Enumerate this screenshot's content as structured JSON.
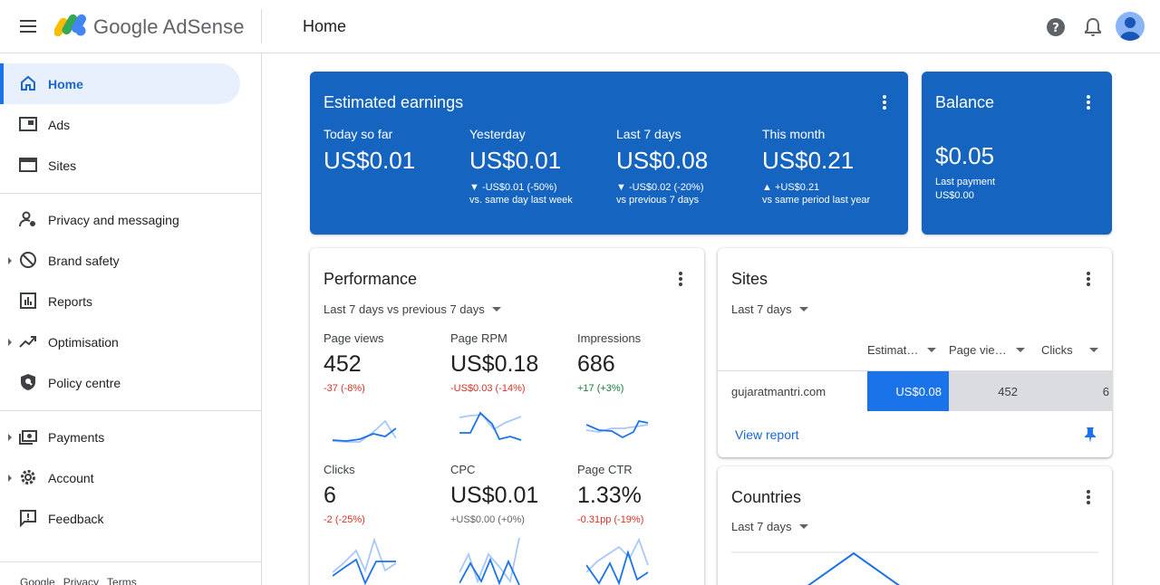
{
  "header": {
    "brand_google": "Google",
    "brand_product": "AdSense",
    "page_title": "Home"
  },
  "sidebar": {
    "items": [
      {
        "label": "Home",
        "icon": "home-icon"
      },
      {
        "label": "Ads",
        "icon": "ads-icon"
      },
      {
        "label": "Sites",
        "icon": "sites-icon"
      },
      {
        "label": "Privacy and messaging",
        "icon": "privacy-icon"
      },
      {
        "label": "Brand safety",
        "icon": "block-icon"
      },
      {
        "label": "Reports",
        "icon": "reports-icon"
      },
      {
        "label": "Optimisation",
        "icon": "trending-up-icon"
      },
      {
        "label": "Policy centre",
        "icon": "shield-icon"
      },
      {
        "label": "Payments",
        "icon": "payments-icon"
      },
      {
        "label": "Account",
        "icon": "gear-icon"
      },
      {
        "label": "Feedback",
        "icon": "feedback-icon"
      }
    ],
    "footer": [
      "Google",
      "Privacy",
      "Terms"
    ]
  },
  "earnings": {
    "title": "Estimated earnings",
    "cols": [
      {
        "label": "Today so far",
        "value": "US$0.01",
        "change": "",
        "compare": ""
      },
      {
        "label": "Yesterday",
        "value": "US$0.01",
        "change": "▼ -US$0.01 (-50%)",
        "compare": "vs. same day last week"
      },
      {
        "label": "Last 7 days",
        "value": "US$0.08",
        "change": "▼ -US$0.02 (-20%)",
        "compare": "vs previous 7 days"
      },
      {
        "label": "This month",
        "value": "US$0.21",
        "change": "▲ +US$0.21",
        "compare": "vs same period last year"
      }
    ]
  },
  "balance": {
    "title": "Balance",
    "value": "$0.05",
    "last_payment_label": "Last payment",
    "last_payment_value": "US$0.00"
  },
  "performance": {
    "title": "Performance",
    "range": "Last 7 days vs previous 7 days",
    "metrics": [
      {
        "label": "Page views",
        "value": "452",
        "change": "-37 (-8%)",
        "trend": "neg"
      },
      {
        "label": "Page RPM",
        "value": "US$0.18",
        "change": "-US$0.03 (-14%)",
        "trend": "neg"
      },
      {
        "label": "Impressions",
        "value": "686",
        "change": "+17 (+3%)",
        "trend": "pos"
      },
      {
        "label": "Clicks",
        "value": "6",
        "change": "-2 (-25%)",
        "trend": "neg"
      },
      {
        "label": "CPC",
        "value": "US$0.01",
        "change": "+US$0.00 (+0%)",
        "trend": "neu"
      },
      {
        "label": "Page CTR",
        "value": "1.33%",
        "change": "-0.31pp (-19%)",
        "trend": "neg"
      }
    ]
  },
  "sites": {
    "title": "Sites",
    "range": "Last 7 days",
    "columns": [
      "Estimat…",
      "Page vie…",
      "Clicks"
    ],
    "rows": [
      {
        "site": "gujaratmantri.com",
        "earnings": "US$0.08",
        "page_views": "452",
        "clicks": "6"
      }
    ],
    "view_report": "View report"
  },
  "countries": {
    "title": "Countries",
    "range": "Last 7 days"
  },
  "colors": {
    "accent": "#1a73e8",
    "card_blue": "#1565c0",
    "negative": "#d93025",
    "positive": "#188038"
  }
}
